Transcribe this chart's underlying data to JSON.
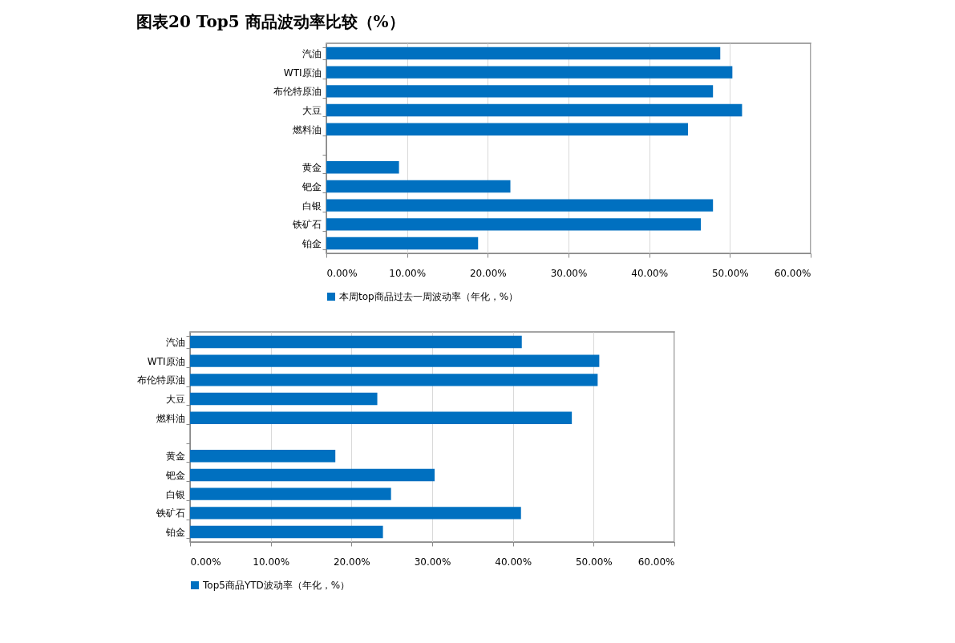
{
  "chart_data": [
    {
      "type": "bar",
      "title": "图表20  Top5 商品波动率比较（%）",
      "orientation": "horizontal",
      "categories": [
        "汽油",
        "WTI原油",
        "布伦特原油",
        "大豆",
        "燃料油",
        null,
        "黄金",
        "钯金",
        "白银",
        "铁矿石",
        "铂金"
      ],
      "series": [
        {
          "name": "本周top商品过去一周波动率（年化，%）",
          "color": "#0070c0",
          "values": [
            48.8,
            50.3,
            47.9,
            51.5,
            44.8,
            null,
            9.0,
            22.8,
            47.9,
            46.4,
            18.8
          ]
        }
      ],
      "xlim": [
        0,
        60
      ],
      "xticks": [
        {
          "value": 0,
          "label": "0.00%"
        },
        {
          "value": 10,
          "label": "10.00%"
        },
        {
          "value": 20,
          "label": "20.00%"
        },
        {
          "value": 30,
          "label": "30.00%"
        },
        {
          "value": 40,
          "label": "40.00%"
        },
        {
          "value": 50,
          "label": "50.00%"
        },
        {
          "value": 60,
          "label": "60.00%"
        }
      ],
      "grid": "x",
      "legend": "bottom"
    },
    {
      "type": "bar",
      "orientation": "horizontal",
      "categories": [
        "汽油",
        "WTI原油",
        "布伦特原油",
        "大豆",
        "燃料油",
        null,
        "黄金",
        "钯金",
        "白银",
        "铁矿石",
        "铂金"
      ],
      "series": [
        {
          "name": "Top5商品YTD波动率（年化，%）",
          "color": "#0070c0",
          "values": [
            41.1,
            50.7,
            50.5,
            23.2,
            47.3,
            null,
            18.0,
            30.3,
            24.9,
            41.0,
            23.9
          ]
        }
      ],
      "xlim": [
        0,
        60
      ],
      "xticks": [
        {
          "value": 0,
          "label": "0.00%"
        },
        {
          "value": 10,
          "label": "10.00%"
        },
        {
          "value": 20,
          "label": "20.00%"
        },
        {
          "value": 30,
          "label": "30.00%"
        },
        {
          "value": 40,
          "label": "40.00%"
        },
        {
          "value": 50,
          "label": "50.00%"
        },
        {
          "value": 60,
          "label": "60.00%"
        }
      ],
      "grid": "x",
      "legend": "bottom"
    }
  ]
}
